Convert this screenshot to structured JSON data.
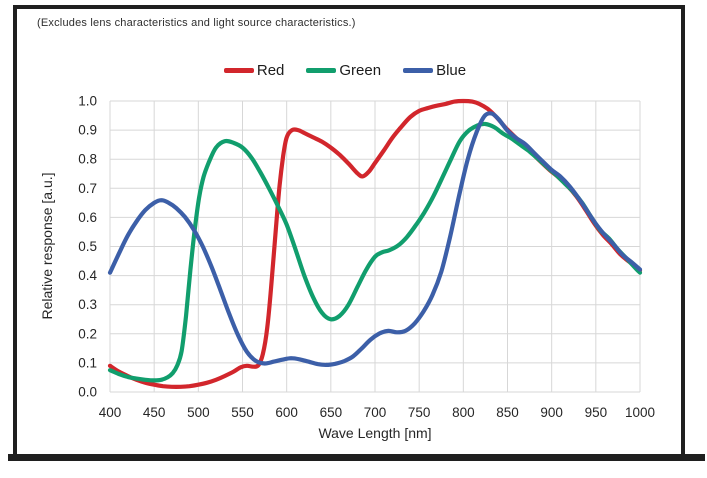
{
  "note": "(Excludes lens characteristics and light source characteristics.)",
  "legend": [
    {
      "label": "Red",
      "color": "#d2262c"
    },
    {
      "label": "Green",
      "color": "#119e6d"
    },
    {
      "label": "Blue",
      "color": "#3c5fa8"
    }
  ],
  "colors": {
    "grid": "#d7d7d7",
    "text": "#262626",
    "frame": "#1f1f1f"
  },
  "chart_data": {
    "type": "line",
    "title": "",
    "xlabel": "Wave Length [nm]",
    "ylabel": "Relative response [a.u.]",
    "xlim": [
      400,
      1000
    ],
    "ylim": [
      0.0,
      1.0
    ],
    "x_ticks": [
      400,
      450,
      500,
      550,
      600,
      650,
      700,
      750,
      800,
      850,
      900,
      950,
      1000
    ],
    "y_ticks": [
      "0.0",
      "0.1",
      "0.2",
      "0.3",
      "0.4",
      "0.5",
      "0.6",
      "0.7",
      "0.8",
      "0.9",
      "1.0"
    ],
    "grid": true,
    "legend_position": "top",
    "series": [
      {
        "name": "Red",
        "color": "#d2262c",
        "points": [
          [
            400,
            0.09
          ],
          [
            410,
            0.07
          ],
          [
            420,
            0.055
          ],
          [
            430,
            0.042
          ],
          [
            440,
            0.032
          ],
          [
            450,
            0.025
          ],
          [
            460,
            0.02
          ],
          [
            470,
            0.018
          ],
          [
            480,
            0.018
          ],
          [
            490,
            0.02
          ],
          [
            500,
            0.025
          ],
          [
            510,
            0.032
          ],
          [
            520,
            0.042
          ],
          [
            530,
            0.055
          ],
          [
            540,
            0.07
          ],
          [
            548,
            0.085
          ],
          [
            555,
            0.09
          ],
          [
            562,
            0.087
          ],
          [
            568,
            0.092
          ],
          [
            573,
            0.13
          ],
          [
            578,
            0.22
          ],
          [
            583,
            0.38
          ],
          [
            588,
            0.57
          ],
          [
            592,
            0.71
          ],
          [
            596,
            0.81
          ],
          [
            600,
            0.875
          ],
          [
            606,
            0.9
          ],
          [
            613,
            0.9
          ],
          [
            620,
            0.89
          ],
          [
            630,
            0.875
          ],
          [
            640,
            0.86
          ],
          [
            650,
            0.84
          ],
          [
            660,
            0.815
          ],
          [
            670,
            0.785
          ],
          [
            680,
            0.752
          ],
          [
            686,
            0.741
          ],
          [
            693,
            0.757
          ],
          [
            700,
            0.787
          ],
          [
            710,
            0.83
          ],
          [
            720,
            0.875
          ],
          [
            730,
            0.912
          ],
          [
            740,
            0.945
          ],
          [
            750,
            0.966
          ],
          [
            760,
            0.976
          ],
          [
            770,
            0.984
          ],
          [
            780,
            0.99
          ],
          [
            790,
            0.998
          ],
          [
            800,
            1.0
          ],
          [
            810,
            0.998
          ],
          [
            818,
            0.99
          ],
          [
            828,
            0.972
          ],
          [
            838,
            0.943
          ],
          [
            848,
            0.908
          ],
          [
            858,
            0.878
          ],
          [
            868,
            0.85
          ],
          [
            878,
            0.82
          ],
          [
            888,
            0.79
          ],
          [
            898,
            0.762
          ],
          [
            908,
            0.737
          ],
          [
            918,
            0.708
          ],
          [
            928,
            0.672
          ],
          [
            938,
            0.628
          ],
          [
            948,
            0.58
          ],
          [
            958,
            0.54
          ],
          [
            968,
            0.508
          ],
          [
            978,
            0.472
          ],
          [
            988,
            0.447
          ],
          [
            1000,
            0.418
          ]
        ]
      },
      {
        "name": "Green",
        "color": "#119e6d",
        "points": [
          [
            400,
            0.075
          ],
          [
            410,
            0.062
          ],
          [
            420,
            0.052
          ],
          [
            430,
            0.046
          ],
          [
            440,
            0.042
          ],
          [
            450,
            0.04
          ],
          [
            458,
            0.042
          ],
          [
            465,
            0.05
          ],
          [
            471,
            0.065
          ],
          [
            476,
            0.09
          ],
          [
            481,
            0.14
          ],
          [
            486,
            0.26
          ],
          [
            491,
            0.42
          ],
          [
            496,
            0.56
          ],
          [
            501,
            0.67
          ],
          [
            506,
            0.74
          ],
          [
            512,
            0.79
          ],
          [
            520,
            0.84
          ],
          [
            530,
            0.862
          ],
          [
            540,
            0.856
          ],
          [
            550,
            0.84
          ],
          [
            560,
            0.806
          ],
          [
            570,
            0.756
          ],
          [
            580,
            0.7
          ],
          [
            590,
            0.64
          ],
          [
            600,
            0.575
          ],
          [
            610,
            0.49
          ],
          [
            620,
            0.4
          ],
          [
            630,
            0.325
          ],
          [
            640,
            0.272
          ],
          [
            650,
            0.25
          ],
          [
            660,
            0.262
          ],
          [
            670,
            0.3
          ],
          [
            680,
            0.36
          ],
          [
            690,
            0.42
          ],
          [
            700,
            0.465
          ],
          [
            708,
            0.48
          ],
          [
            716,
            0.487
          ],
          [
            726,
            0.503
          ],
          [
            736,
            0.532
          ],
          [
            746,
            0.572
          ],
          [
            756,
            0.618
          ],
          [
            766,
            0.672
          ],
          [
            776,
            0.735
          ],
          [
            786,
            0.8
          ],
          [
            796,
            0.862
          ],
          [
            806,
            0.898
          ],
          [
            816,
            0.916
          ],
          [
            825,
            0.921
          ],
          [
            835,
            0.91
          ],
          [
            845,
            0.888
          ],
          [
            855,
            0.87
          ],
          [
            865,
            0.848
          ],
          [
            875,
            0.826
          ],
          [
            885,
            0.8
          ],
          [
            895,
            0.772
          ],
          [
            905,
            0.746
          ],
          [
            915,
            0.716
          ],
          [
            925,
            0.686
          ],
          [
            935,
            0.648
          ],
          [
            945,
            0.6
          ],
          [
            955,
            0.556
          ],
          [
            965,
            0.527
          ],
          [
            975,
            0.49
          ],
          [
            985,
            0.458
          ],
          [
            995,
            0.425
          ],
          [
            1000,
            0.41
          ]
        ]
      },
      {
        "name": "Blue",
        "color": "#3c5fa8",
        "points": [
          [
            400,
            0.41
          ],
          [
            410,
            0.475
          ],
          [
            420,
            0.537
          ],
          [
            430,
            0.586
          ],
          [
            440,
            0.625
          ],
          [
            450,
            0.65
          ],
          [
            458,
            0.659
          ],
          [
            466,
            0.651
          ],
          [
            475,
            0.632
          ],
          [
            485,
            0.601
          ],
          [
            495,
            0.557
          ],
          [
            505,
            0.5
          ],
          [
            515,
            0.43
          ],
          [
            525,
            0.35
          ],
          [
            535,
            0.268
          ],
          [
            545,
            0.195
          ],
          [
            555,
            0.138
          ],
          [
            565,
            0.107
          ],
          [
            575,
            0.098
          ],
          [
            585,
            0.104
          ],
          [
            595,
            0.111
          ],
          [
            605,
            0.116
          ],
          [
            615,
            0.112
          ],
          [
            625,
            0.104
          ],
          [
            635,
            0.096
          ],
          [
            645,
            0.093
          ],
          [
            655,
            0.097
          ],
          [
            665,
            0.106
          ],
          [
            675,
            0.122
          ],
          [
            685,
            0.15
          ],
          [
            695,
            0.18
          ],
          [
            705,
            0.201
          ],
          [
            715,
            0.21
          ],
          [
            725,
            0.205
          ],
          [
            735,
            0.211
          ],
          [
            745,
            0.236
          ],
          [
            755,
            0.277
          ],
          [
            765,
            0.333
          ],
          [
            775,
            0.413
          ],
          [
            785,
            0.533
          ],
          [
            795,
            0.672
          ],
          [
            805,
            0.8
          ],
          [
            815,
            0.893
          ],
          [
            824,
            0.948
          ],
          [
            832,
            0.957
          ],
          [
            840,
            0.937
          ],
          [
            850,
            0.898
          ],
          [
            860,
            0.872
          ],
          [
            870,
            0.852
          ],
          [
            880,
            0.822
          ],
          [
            890,
            0.792
          ],
          [
            900,
            0.763
          ],
          [
            910,
            0.74
          ],
          [
            920,
            0.708
          ],
          [
            930,
            0.668
          ],
          [
            940,
            0.623
          ],
          [
            950,
            0.578
          ],
          [
            960,
            0.54
          ],
          [
            970,
            0.508
          ],
          [
            980,
            0.472
          ],
          [
            990,
            0.447
          ],
          [
            1000,
            0.421
          ]
        ]
      }
    ]
  }
}
